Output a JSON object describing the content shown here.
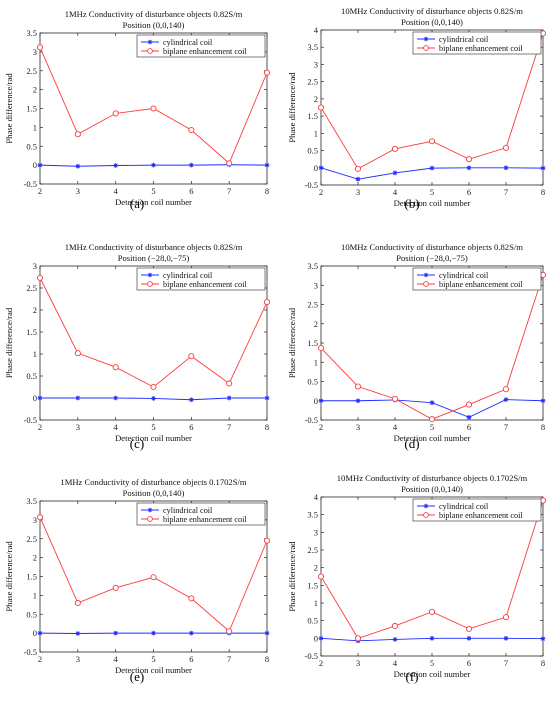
{
  "colors": {
    "cylindrical": "#1f2bff",
    "biplane": "#ff3b3b",
    "axis": "#262626",
    "legend_border": "#262626",
    "background": "#ffffff"
  },
  "chart_data": [
    {
      "type": "line",
      "panel_label": "(a)",
      "title": "1MHz Conductivity of disturbance objects 0.82S/m",
      "subtitle": "Position (0,0,140)",
      "xlabel": "Detection coil number",
      "ylabel": "Phase difference/rad",
      "xlim": [
        2,
        8
      ],
      "ylim": [
        -0.5,
        3.5
      ],
      "xticks": [
        2,
        3,
        4,
        5,
        6,
        7,
        8
      ],
      "yticks": [
        -0.5,
        0,
        0.5,
        1,
        1.5,
        2,
        2.5,
        3,
        3.5
      ],
      "grid": false,
      "legend": "top-right",
      "x": [
        2,
        3,
        4,
        5,
        6,
        7,
        8
      ],
      "series": [
        {
          "name": "cylindrical coil",
          "marker": "*",
          "color": "#1f2bff",
          "values": [
            0.0,
            -0.03,
            -0.01,
            0.0,
            0.0,
            0.01,
            0.0
          ]
        },
        {
          "name": "biplane enhancement coil",
          "marker": "o",
          "color": "#ff3b3b",
          "values": [
            3.12,
            0.82,
            1.37,
            1.5,
            0.93,
            0.05,
            2.45
          ]
        }
      ]
    },
    {
      "type": "line",
      "panel_label": "(b)",
      "title": "10MHz Conductivity of disturbance objects 0.82S/m",
      "subtitle": "Position (0,0,140)",
      "xlabel": "Detection coil number",
      "ylabel": "Phase difference/rad",
      "xlim": [
        2,
        8
      ],
      "ylim": [
        -0.5,
        4
      ],
      "xticks": [
        2,
        3,
        4,
        5,
        6,
        7,
        8
      ],
      "yticks": [
        -0.5,
        0,
        0.5,
        1,
        1.5,
        2,
        2.5,
        3,
        3.5,
        4
      ],
      "grid": false,
      "legend": "top-right",
      "x": [
        2,
        3,
        4,
        5,
        6,
        7,
        8
      ],
      "series": [
        {
          "name": "cylindrical coil",
          "marker": "*",
          "color": "#1f2bff",
          "values": [
            0.0,
            -0.33,
            -0.15,
            -0.01,
            0.0,
            0.0,
            -0.01
          ]
        },
        {
          "name": "biplane enhancement coil",
          "marker": "o",
          "color": "#ff3b3b",
          "values": [
            1.75,
            -0.03,
            0.55,
            0.77,
            0.25,
            0.58,
            3.9
          ]
        }
      ]
    },
    {
      "type": "line",
      "panel_label": "(c)",
      "title": "1MHz Conductivity of disturbance objects 0.82S/m",
      "subtitle": "Position (−28,0,−75)",
      "xlabel": "Detection coil number",
      "ylabel": "Phase difference/rad",
      "xlim": [
        2,
        8
      ],
      "ylim": [
        -0.5,
        3
      ],
      "xticks": [
        2,
        3,
        4,
        5,
        6,
        7,
        8
      ],
      "yticks": [
        -0.5,
        0,
        0.5,
        1,
        1.5,
        2,
        2.5,
        3
      ],
      "grid": false,
      "legend": "top-right",
      "x": [
        2,
        3,
        4,
        5,
        6,
        7,
        8
      ],
      "series": [
        {
          "name": "cylindrical coil",
          "marker": "*",
          "color": "#1f2bff",
          "values": [
            0.0,
            0.0,
            0.0,
            -0.01,
            -0.04,
            0.0,
            0.0
          ]
        },
        {
          "name": "biplane enhancement coil",
          "marker": "o",
          "color": "#ff3b3b",
          "values": [
            2.73,
            1.02,
            0.7,
            0.25,
            0.95,
            0.33,
            2.18
          ]
        }
      ]
    },
    {
      "type": "line",
      "panel_label": "(d)",
      "title": "10MHz Conductivity of disturbance objects 0.82S/m",
      "subtitle": "Position (−28,0,−75)",
      "xlabel": "Detection coil number",
      "ylabel": "Phase difference/rad",
      "xlim": [
        2,
        8
      ],
      "ylim": [
        -0.5,
        3.5
      ],
      "xticks": [
        2,
        3,
        4,
        5,
        6,
        7,
        8
      ],
      "yticks": [
        -0.5,
        0,
        0.5,
        1,
        1.5,
        2,
        2.5,
        3,
        3.5
      ],
      "grid": false,
      "legend": "top-right",
      "x": [
        2,
        3,
        4,
        5,
        6,
        7,
        8
      ],
      "series": [
        {
          "name": "cylindrical coil",
          "marker": "*",
          "color": "#1f2bff",
          "values": [
            0.0,
            0.0,
            0.02,
            -0.05,
            -0.43,
            0.03,
            0.0
          ]
        },
        {
          "name": "biplane enhancement coil",
          "marker": "o",
          "color": "#ff3b3b",
          "values": [
            1.37,
            0.37,
            0.05,
            -0.48,
            -0.1,
            0.3,
            3.27
          ]
        }
      ]
    },
    {
      "type": "line",
      "panel_label": "(e)",
      "title": "1MHz Conductivity of disturbance objects 0.1702S/m",
      "subtitle": "Position (0,0,140)",
      "xlabel": "Detection coil number",
      "ylabel": "Phase difference/rad",
      "xlim": [
        2,
        8
      ],
      "ylim": [
        -0.5,
        3.5
      ],
      "xticks": [
        2,
        3,
        4,
        5,
        6,
        7,
        8
      ],
      "yticks": [
        -0.5,
        0,
        0.5,
        1,
        1.5,
        2,
        2.5,
        3,
        3.5
      ],
      "grid": false,
      "legend": "top-right",
      "x": [
        2,
        3,
        4,
        5,
        6,
        7,
        8
      ],
      "series": [
        {
          "name": "cylindrical coil",
          "marker": "*",
          "color": "#1f2bff",
          "values": [
            0.0,
            -0.01,
            0.0,
            0.0,
            0.0,
            0.0,
            0.0
          ]
        },
        {
          "name": "biplane enhancement coil",
          "marker": "o",
          "color": "#ff3b3b",
          "values": [
            3.07,
            0.8,
            1.2,
            1.48,
            0.92,
            0.05,
            2.45
          ]
        }
      ]
    },
    {
      "type": "line",
      "panel_label": "(f)",
      "title": "10MHz Conductivity of disturbance objects 0.1702S/m",
      "subtitle": "Position (0,0,140)",
      "xlabel": "Detection coil number",
      "ylabel": "Phase difference/rad",
      "xlim": [
        2,
        8
      ],
      "ylim": [
        -0.5,
        4
      ],
      "xticks": [
        2,
        3,
        4,
        5,
        6,
        7,
        8
      ],
      "yticks": [
        -0.5,
        0,
        0.5,
        1,
        1.5,
        2,
        2.5,
        3,
        3.5,
        4
      ],
      "grid": false,
      "legend": "top-right",
      "x": [
        2,
        3,
        4,
        5,
        6,
        7,
        8
      ],
      "series": [
        {
          "name": "cylindrical coil",
          "marker": "*",
          "color": "#1f2bff",
          "values": [
            0.0,
            -0.07,
            -0.03,
            0.0,
            0.0,
            0.0,
            -0.01
          ]
        },
        {
          "name": "biplane enhancement coil",
          "marker": "o",
          "color": "#ff3b3b",
          "values": [
            1.75,
            0.0,
            0.35,
            0.75,
            0.27,
            0.6,
            3.9
          ]
        }
      ]
    }
  ]
}
